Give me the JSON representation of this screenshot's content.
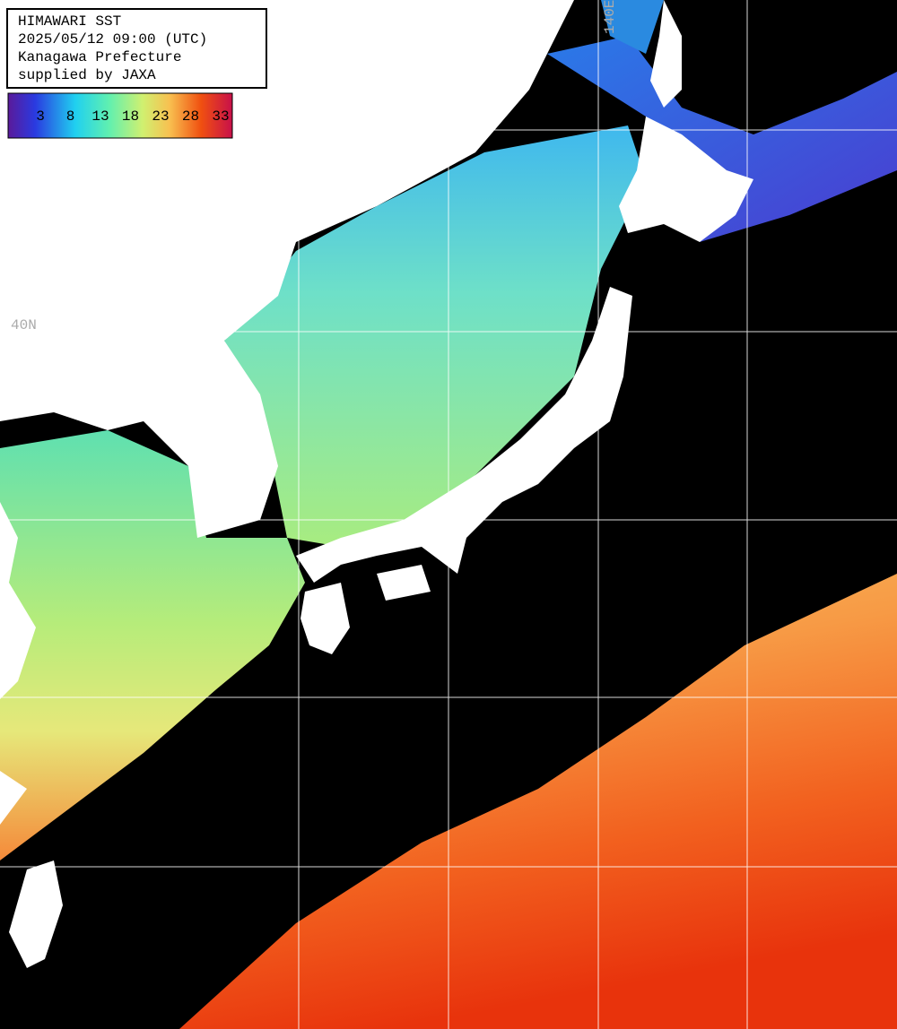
{
  "header": {
    "lines": [
      "HIMAWARI SST",
      "2025/05/12 09:00 (UTC)",
      "Kanagawa Prefecture",
      "supplied by JAXA"
    ]
  },
  "colorbar": {
    "labels": [
      "3",
      "8",
      "13",
      "18",
      "23",
      "28",
      "33"
    ]
  },
  "grid_labels": {
    "latitude": "40N",
    "longitude": "140E"
  }
}
